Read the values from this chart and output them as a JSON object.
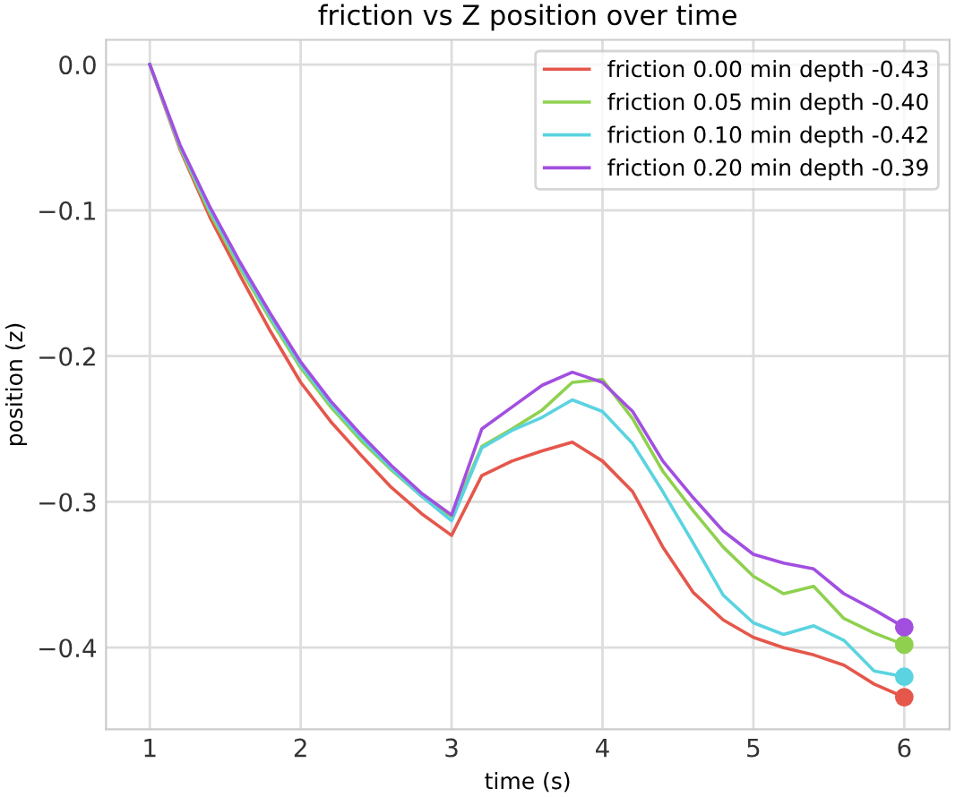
{
  "chart_data": {
    "type": "line",
    "title": "friction vs Z position over time",
    "xlabel": "time (s)",
    "ylabel": "position (z)",
    "x": [
      1,
      1.2,
      1.4,
      1.6,
      1.8,
      2,
      2.2,
      2.4,
      2.6,
      2.8,
      3,
      3.2,
      3.4,
      3.6,
      3.8,
      4,
      4.2,
      4.4,
      4.6,
      4.8,
      5,
      5.2,
      5.4,
      5.6,
      5.8,
      6
    ],
    "series": [
      {
        "name": "friction 0.00 min depth -0.43",
        "color": "#e5574b",
        "values": [
          0,
          -0.058,
          -0.105,
          -0.145,
          -0.183,
          -0.218,
          -0.245,
          -0.268,
          -0.29,
          -0.308,
          -0.323,
          -0.282,
          -0.272,
          -0.265,
          -0.259,
          -0.272,
          -0.293,
          -0.331,
          -0.362,
          -0.381,
          -0.393,
          -0.4,
          -0.405,
          -0.412,
          -0.425,
          -0.434
        ]
      },
      {
        "name": "friction 0.05 min depth -0.40",
        "color": "#8fd14f",
        "values": [
          0,
          -0.057,
          -0.102,
          -0.14,
          -0.175,
          -0.208,
          -0.235,
          -0.258,
          -0.278,
          -0.296,
          -0.31,
          -0.262,
          -0.25,
          -0.237,
          -0.218,
          -0.216,
          -0.243,
          -0.279,
          -0.306,
          -0.331,
          -0.351,
          -0.363,
          -0.358,
          -0.38,
          -0.39,
          -0.398
        ]
      },
      {
        "name": "friction 0.10 min depth -0.42",
        "color": "#5bd3e0",
        "values": [
          0,
          -0.056,
          -0.1,
          -0.138,
          -0.173,
          -0.206,
          -0.233,
          -0.256,
          -0.277,
          -0.296,
          -0.313,
          -0.263,
          -0.251,
          -0.242,
          -0.23,
          -0.238,
          -0.26,
          -0.293,
          -0.328,
          -0.364,
          -0.383,
          -0.391,
          -0.385,
          -0.395,
          -0.416,
          -0.42
        ]
      },
      {
        "name": "friction 0.20 min depth -0.39",
        "color": "#a24fe0",
        "values": [
          0,
          -0.055,
          -0.098,
          -0.136,
          -0.171,
          -0.204,
          -0.231,
          -0.254,
          -0.275,
          -0.294,
          -0.309,
          -0.25,
          -0.235,
          -0.22,
          -0.211,
          -0.218,
          -0.238,
          -0.272,
          -0.297,
          -0.32,
          -0.336,
          -0.342,
          -0.346,
          -0.363,
          -0.374,
          -0.386
        ]
      },
      {
        "type": "scatter",
        "color": "#e5574b",
        "values": [
          null,
          null,
          null,
          null,
          null,
          null,
          null,
          null,
          null,
          null,
          null,
          null,
          null,
          null,
          null,
          null,
          null,
          null,
          null,
          null,
          null,
          null,
          null,
          null,
          null,
          -0.434
        ],
        "marker": "circle"
      },
      {
        "type": "scatter",
        "color": "#8fd14f",
        "values": [
          null,
          null,
          null,
          null,
          null,
          null,
          null,
          null,
          null,
          null,
          null,
          null,
          null,
          null,
          null,
          null,
          null,
          null,
          null,
          null,
          null,
          null,
          null,
          null,
          null,
          -0.398
        ],
        "marker": "circle"
      },
      {
        "type": "scatter",
        "color": "#5bd3e0",
        "values": [
          null,
          null,
          null,
          null,
          null,
          null,
          null,
          null,
          null,
          null,
          null,
          null,
          null,
          null,
          null,
          null,
          null,
          null,
          null,
          null,
          null,
          null,
          null,
          null,
          null,
          -0.42
        ],
        "marker": "circle"
      },
      {
        "type": "scatter",
        "color": "#a24fe0",
        "values": [
          null,
          null,
          null,
          null,
          null,
          null,
          null,
          null,
          null,
          null,
          null,
          null,
          null,
          null,
          null,
          null,
          null,
          null,
          null,
          null,
          null,
          null,
          null,
          null,
          null,
          -0.386
        ],
        "marker": "circle"
      }
    ],
    "xlim": [
      0.71,
      6.3
    ],
    "ylim": [
      -0.456,
      0.017
    ],
    "xticks": [
      1,
      2,
      3,
      4,
      5,
      6
    ],
    "yticks": [
      {
        "value": 0,
        "label": "0.0"
      },
      {
        "value": -0.1,
        "label": "−0.1"
      },
      {
        "value": -0.2,
        "label": "−0.2"
      },
      {
        "value": -0.3,
        "label": "−0.3"
      },
      {
        "value": -0.4,
        "label": "−0.4"
      }
    ],
    "grid": true,
    "legend": "top right"
  }
}
